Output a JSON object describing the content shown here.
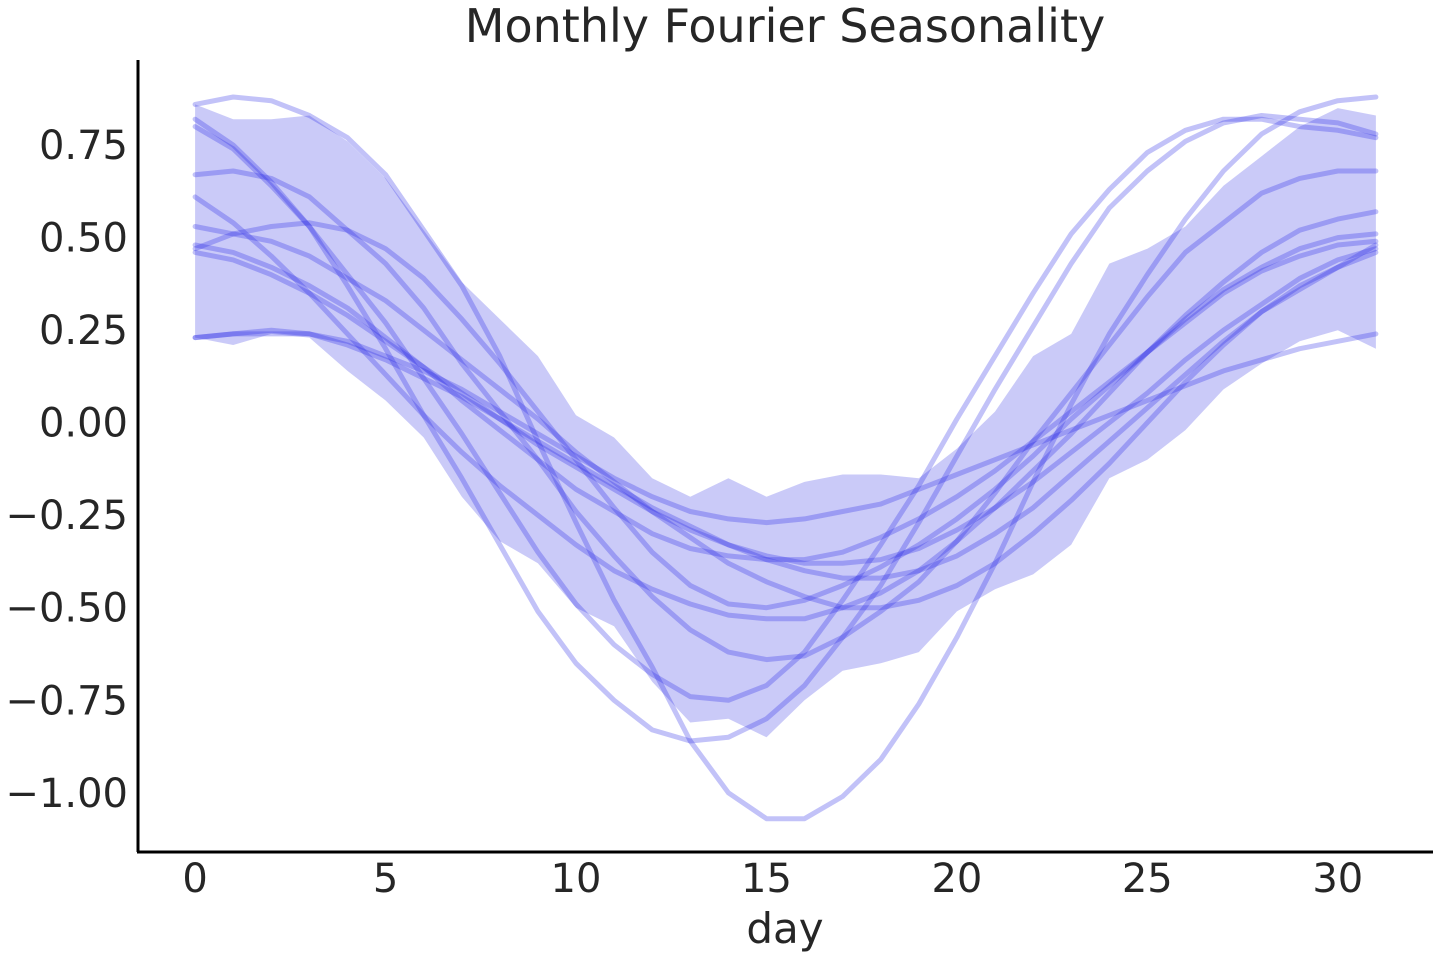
{
  "chart_data": {
    "type": "line",
    "title": "Monthly Fourier Seasonality",
    "xlabel": "day",
    "ylabel": "",
    "xlim": [
      -1.5,
      32.5
    ],
    "ylim": [
      -1.16,
      0.98
    ],
    "x_ticks": [
      0,
      5,
      10,
      15,
      20,
      25,
      30
    ],
    "x_tick_labels": [
      "0",
      "5",
      "10",
      "15",
      "20",
      "25",
      "30"
    ],
    "y_ticks": [
      -1.0,
      -0.75,
      -0.5,
      -0.25,
      0.0,
      0.25,
      0.5,
      0.75
    ],
    "y_tick_labels": [
      "−1.00",
      "−0.75",
      "−0.50",
      "−0.25",
      "0.00",
      "0.25",
      "0.50",
      "0.75"
    ],
    "grid": false,
    "legend": "none",
    "colors": {
      "line": "#2323e6",
      "band": "#4040e6",
      "axis": "#000000",
      "text": "#262626"
    },
    "x": [
      0,
      1,
      2,
      3,
      4,
      5,
      6,
      7,
      8,
      9,
      10,
      11,
      12,
      13,
      14,
      15,
      16,
      17,
      18,
      19,
      20,
      21,
      22,
      23,
      24,
      25,
      26,
      27,
      28,
      29,
      30,
      31
    ],
    "band_upper": [
      0.86,
      0.82,
      0.82,
      0.83,
      0.76,
      0.66,
      0.52,
      0.38,
      0.28,
      0.18,
      0.02,
      -0.04,
      -0.15,
      -0.2,
      -0.15,
      -0.2,
      -0.16,
      -0.14,
      -0.14,
      -0.15,
      -0.07,
      0.03,
      0.18,
      0.24,
      0.43,
      0.47,
      0.53,
      0.64,
      0.72,
      0.8,
      0.85,
      0.83
    ],
    "band_lower": [
      0.23,
      0.21,
      0.24,
      0.23,
      0.14,
      0.06,
      -0.04,
      -0.2,
      -0.32,
      -0.38,
      -0.5,
      -0.55,
      -0.7,
      -0.81,
      -0.8,
      -0.85,
      -0.75,
      -0.67,
      -0.65,
      -0.62,
      -0.51,
      -0.45,
      -0.41,
      -0.33,
      -0.15,
      -0.1,
      -0.02,
      0.09,
      0.16,
      0.22,
      0.25,
      0.2
    ],
    "series": [
      {
        "values": [
          0.86,
          0.88,
          0.87,
          0.83,
          0.77,
          0.67,
          0.52,
          0.37,
          0.18,
          -0.05,
          -0.27,
          -0.48,
          -0.66,
          -0.86,
          -1.0,
          -1.07,
          -1.07,
          -1.01,
          -0.91,
          -0.76,
          -0.58,
          -0.38,
          -0.16,
          0.05,
          0.24,
          0.4,
          0.55,
          0.68,
          0.78,
          0.84,
          0.87,
          0.88
        ]
      },
      {
        "values": [
          0.82,
          0.75,
          0.65,
          0.53,
          0.37,
          0.2,
          0.02,
          -0.15,
          -0.33,
          -0.51,
          -0.65,
          -0.75,
          -0.83,
          -0.86,
          -0.85,
          -0.8,
          -0.71,
          -0.58,
          -0.44,
          -0.27,
          -0.09,
          0.09,
          0.26,
          0.43,
          0.58,
          0.68,
          0.76,
          0.81,
          0.83,
          0.82,
          0.81,
          0.78
        ]
      },
      {
        "values": [
          0.8,
          0.74,
          0.64,
          0.53,
          0.4,
          0.27,
          0.12,
          -0.03,
          -0.19,
          -0.35,
          -0.49,
          -0.6,
          -0.68,
          -0.74,
          -0.75,
          -0.71,
          -0.62,
          -0.48,
          -0.33,
          -0.17,
          0.01,
          0.18,
          0.35,
          0.51,
          0.63,
          0.73,
          0.79,
          0.82,
          0.82,
          0.8,
          0.79,
          0.77
        ]
      },
      {
        "values": [
          0.67,
          0.68,
          0.66,
          0.61,
          0.52,
          0.43,
          0.31,
          0.16,
          0.03,
          -0.1,
          -0.24,
          -0.36,
          -0.47,
          -0.56,
          -0.62,
          -0.64,
          -0.63,
          -0.58,
          -0.51,
          -0.43,
          -0.32,
          -0.19,
          -0.05,
          0.08,
          0.21,
          0.34,
          0.46,
          0.54,
          0.62,
          0.66,
          0.68,
          0.68
        ]
      },
      {
        "values": [
          0.61,
          0.54,
          0.45,
          0.35,
          0.24,
          0.13,
          0.02,
          -0.08,
          -0.17,
          -0.25,
          -0.33,
          -0.4,
          -0.45,
          -0.49,
          -0.52,
          -0.53,
          -0.53,
          -0.5,
          -0.46,
          -0.4,
          -0.32,
          -0.23,
          -0.13,
          -0.03,
          0.08,
          0.19,
          0.29,
          0.38,
          0.46,
          0.52,
          0.55,
          0.57
        ]
      },
      {
        "values": [
          0.53,
          0.51,
          0.49,
          0.45,
          0.39,
          0.33,
          0.25,
          0.17,
          0.09,
          0.01,
          -0.08,
          -0.16,
          -0.24,
          -0.31,
          -0.38,
          -0.43,
          -0.47,
          -0.5,
          -0.5,
          -0.48,
          -0.44,
          -0.38,
          -0.3,
          -0.21,
          -0.11,
          0.0,
          0.11,
          0.21,
          0.3,
          0.37,
          0.42,
          0.46
        ]
      },
      {
        "values": [
          0.48,
          0.46,
          0.42,
          0.37,
          0.31,
          0.23,
          0.15,
          0.06,
          -0.02,
          -0.1,
          -0.18,
          -0.24,
          -0.3,
          -0.34,
          -0.36,
          -0.37,
          -0.37,
          -0.35,
          -0.31,
          -0.26,
          -0.2,
          -0.13,
          -0.05,
          0.03,
          0.11,
          0.19,
          0.27,
          0.35,
          0.41,
          0.45,
          0.48,
          0.49
        ]
      },
      {
        "values": [
          0.46,
          0.44,
          0.4,
          0.35,
          0.29,
          0.22,
          0.15,
          0.08,
          0.01,
          -0.06,
          -0.12,
          -0.18,
          -0.24,
          -0.29,
          -0.33,
          -0.36,
          -0.38,
          -0.38,
          -0.37,
          -0.34,
          -0.29,
          -0.23,
          -0.16,
          -0.08,
          0.0,
          0.08,
          0.17,
          0.25,
          0.32,
          0.39,
          0.44,
          0.47
        ]
      },
      {
        "values": [
          0.47,
          0.51,
          0.53,
          0.54,
          0.52,
          0.47,
          0.39,
          0.28,
          0.16,
          0.03,
          -0.1,
          -0.23,
          -0.35,
          -0.44,
          -0.49,
          -0.5,
          -0.48,
          -0.44,
          -0.39,
          -0.33,
          -0.26,
          -0.18,
          -0.09,
          0.01,
          0.1,
          0.19,
          0.28,
          0.36,
          0.42,
          0.47,
          0.5,
          0.51
        ]
      },
      {
        "values": [
          0.23,
          0.24,
          0.25,
          0.24,
          0.22,
          0.18,
          0.14,
          0.09,
          0.03,
          -0.03,
          -0.09,
          -0.15,
          -0.2,
          -0.24,
          -0.26,
          -0.27,
          -0.26,
          -0.24,
          -0.22,
          -0.18,
          -0.14,
          -0.1,
          -0.06,
          -0.02,
          0.02,
          0.06,
          0.1,
          0.14,
          0.17,
          0.2,
          0.22,
          0.24
        ]
      },
      {
        "values": [
          0.23,
          0.24,
          0.24,
          0.24,
          0.21,
          0.17,
          0.12,
          0.07,
          0.01,
          -0.05,
          -0.11,
          -0.17,
          -0.23,
          -0.28,
          -0.33,
          -0.37,
          -0.4,
          -0.42,
          -0.42,
          -0.4,
          -0.36,
          -0.3,
          -0.23,
          -0.14,
          -0.05,
          0.04,
          0.13,
          0.22,
          0.3,
          0.36,
          0.42,
          0.48
        ]
      }
    ]
  }
}
